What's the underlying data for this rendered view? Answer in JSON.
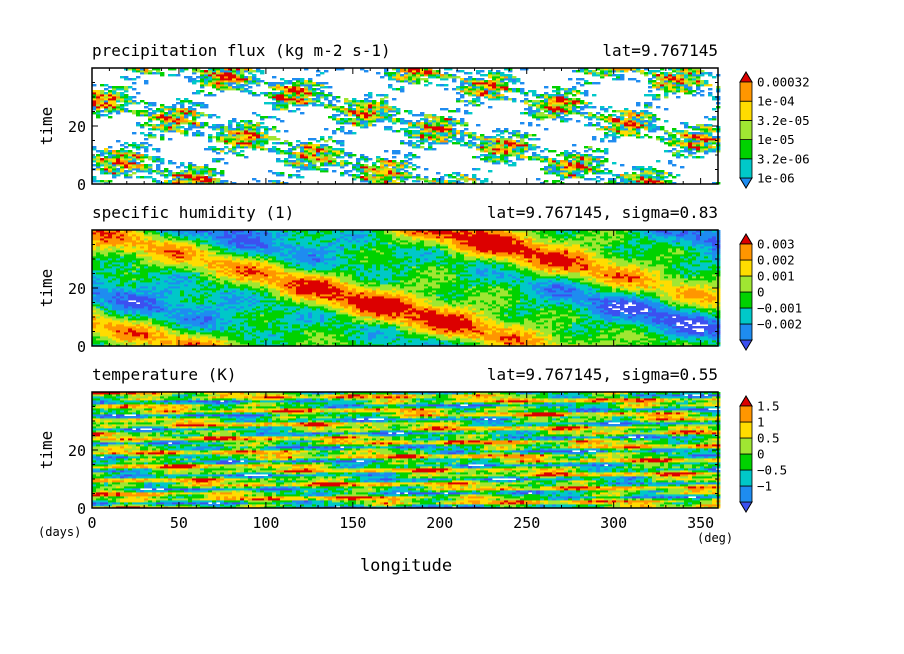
{
  "figure": {
    "x_unit_label": "(deg)",
    "y_unit_label": "(days)",
    "xlabel": "longitude"
  },
  "chart_data": [
    {
      "type": "heatmap",
      "title": "precipitation flux (kg m-2 s-1)",
      "subtitle": "lat=9.767145",
      "ylabel": "time",
      "xlim": [
        0,
        360
      ],
      "ylim": [
        0,
        40
      ],
      "x_ticks": [
        0,
        50,
        100,
        150,
        200,
        250,
        300,
        350
      ],
      "y_ticks": [
        0,
        20
      ],
      "colorbar_labels": [
        "0.00032",
        "1e-04",
        "3.2e-05",
        "1e-05",
        "3.2e-06",
        "1e-06"
      ],
      "colorbar_colors": [
        "#1e8cf0",
        "#00c8c8",
        "#00d200",
        "#a0e632",
        "#ffdc00",
        "#ff9600",
        "#dc0000"
      ],
      "mode": "sparse"
    },
    {
      "type": "heatmap",
      "title": "specific humidity (1)",
      "subtitle": "lat=9.767145, sigma=0.83",
      "ylabel": "time",
      "xlim": [
        0,
        360
      ],
      "ylim": [
        0,
        40
      ],
      "x_ticks": [
        0,
        50,
        100,
        150,
        200,
        250,
        300,
        350
      ],
      "y_ticks": [
        0,
        20
      ],
      "colorbar_labels": [
        "0.003",
        "0.002",
        "0.001",
        "0",
        "−0.001",
        "−0.002"
      ],
      "colorbar_colors": [
        "#3c50f0",
        "#1e8cf0",
        "#00c8c8",
        "#00d200",
        "#a0e632",
        "#ffdc00",
        "#ff9600",
        "#dc0000"
      ],
      "mode": "smooth"
    },
    {
      "type": "heatmap",
      "title": "temperature (K)",
      "subtitle": "lat=9.767145, sigma=0.55",
      "ylabel": "time",
      "xlim": [
        0,
        360
      ],
      "ylim": [
        0,
        40
      ],
      "x_ticks": [
        0,
        50,
        100,
        150,
        200,
        250,
        300,
        350
      ],
      "y_ticks": [
        0,
        20
      ],
      "colorbar_labels": [
        "1.5",
        "1",
        "0.5",
        "0",
        "−0.5",
        "−1"
      ],
      "colorbar_colors": [
        "#3c50f0",
        "#1e8cf0",
        "#00c8c8",
        "#00d200",
        "#a0e632",
        "#ffdc00",
        "#ff9600",
        "#dc0000"
      ],
      "mode": "streaky"
    }
  ]
}
